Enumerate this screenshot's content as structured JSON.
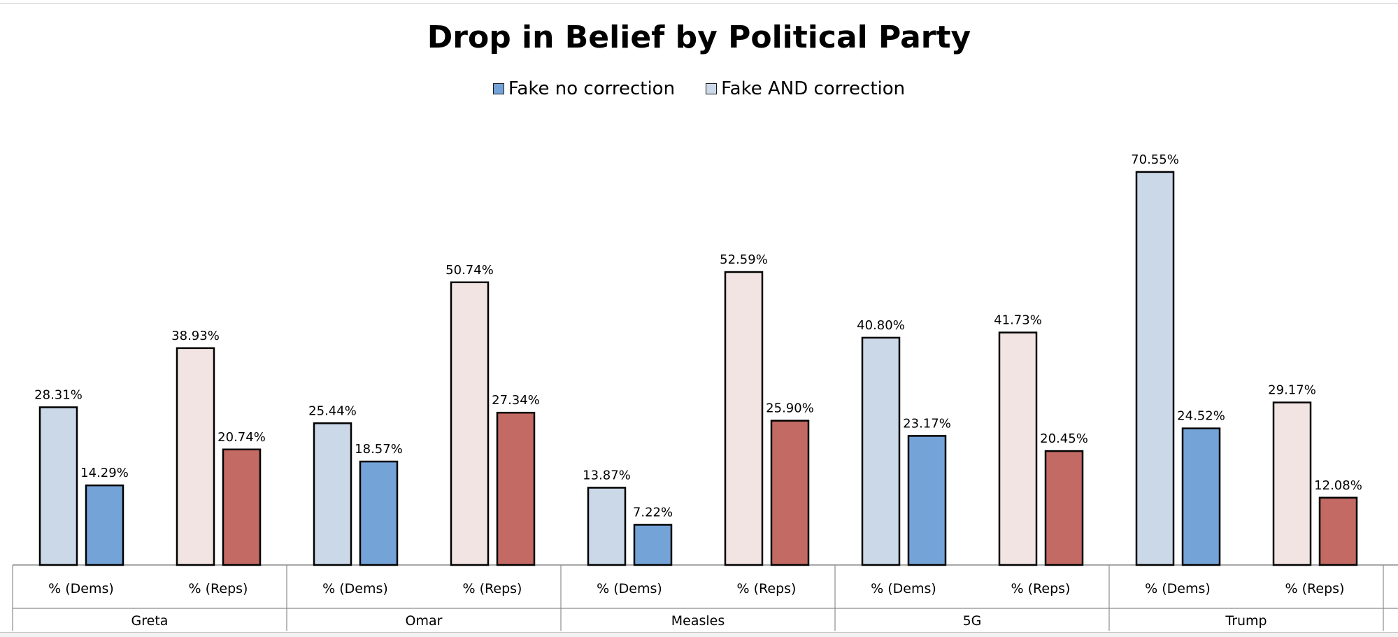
{
  "chart_data": {
    "type": "bar",
    "title": "Drop in Belief by Political Party",
    "legend": {
      "placement": "top-center",
      "entries": [
        {
          "label": "Fake no correction",
          "color": "#74a3d8"
        },
        {
          "label": "Fake AND correction",
          "color": "#cad8e8"
        }
      ]
    },
    "groups": [
      {
        "name": "Greta",
        "subgroups": [
          {
            "label": "% (Dems)",
            "party": "dem",
            "correction": 28.31,
            "no_correction": 14.29,
            "correction_label": "28.31%",
            "no_correction_label": "14.29%"
          },
          {
            "label": "% (Reps)",
            "party": "rep",
            "correction": 38.93,
            "no_correction": 20.74,
            "correction_label": "38.93%",
            "no_correction_label": "20.74%"
          }
        ]
      },
      {
        "name": "Omar",
        "subgroups": [
          {
            "label": "% (Dems)",
            "party": "dem",
            "correction": 25.44,
            "no_correction": 18.57,
            "correction_label": "25.44%",
            "no_correction_label": "18.57%"
          },
          {
            "label": "% (Reps)",
            "party": "rep",
            "correction": 50.74,
            "no_correction": 27.34,
            "correction_label": "50.74%",
            "no_correction_label": "27.34%"
          }
        ]
      },
      {
        "name": "Measles",
        "subgroups": [
          {
            "label": "% (Dems)",
            "party": "dem",
            "correction": 13.87,
            "no_correction": 7.22,
            "correction_label": "13.87%",
            "no_correction_label": "7.22%"
          },
          {
            "label": "% (Reps)",
            "party": "rep",
            "correction": 52.59,
            "no_correction": 25.9,
            "correction_label": "52.59%",
            "no_correction_label": "25.90%"
          }
        ]
      },
      {
        "name": "5G",
        "subgroups": [
          {
            "label": "% (Dems)",
            "party": "dem",
            "correction": 40.8,
            "no_correction": 23.17,
            "correction_label": "40.80%",
            "no_correction_label": "23.17%"
          },
          {
            "label": "% (Reps)",
            "party": "rep",
            "correction": 41.73,
            "no_correction": 20.45,
            "correction_label": "41.73%",
            "no_correction_label": "20.45%"
          }
        ]
      },
      {
        "name": "Trump",
        "subgroups": [
          {
            "label": "% (Dems)",
            "party": "dem",
            "correction": 70.55,
            "no_correction": 24.52,
            "correction_label": "70.55%",
            "no_correction_label": "24.52%"
          },
          {
            "label": "% (Reps)",
            "party": "rep",
            "correction": 29.17,
            "no_correction": 12.08,
            "correction_label": "29.17%",
            "no_correction_label": "12.08%"
          }
        ]
      }
    ],
    "ylim": [
      0,
      75
    ],
    "grid": false,
    "colors": {
      "dem_correction": "#cad8e8",
      "dem_no_correction": "#74a3d8",
      "rep_correction": "#f2e4e3",
      "rep_no_correction": "#c26a63",
      "bar_border": "#000000"
    }
  }
}
